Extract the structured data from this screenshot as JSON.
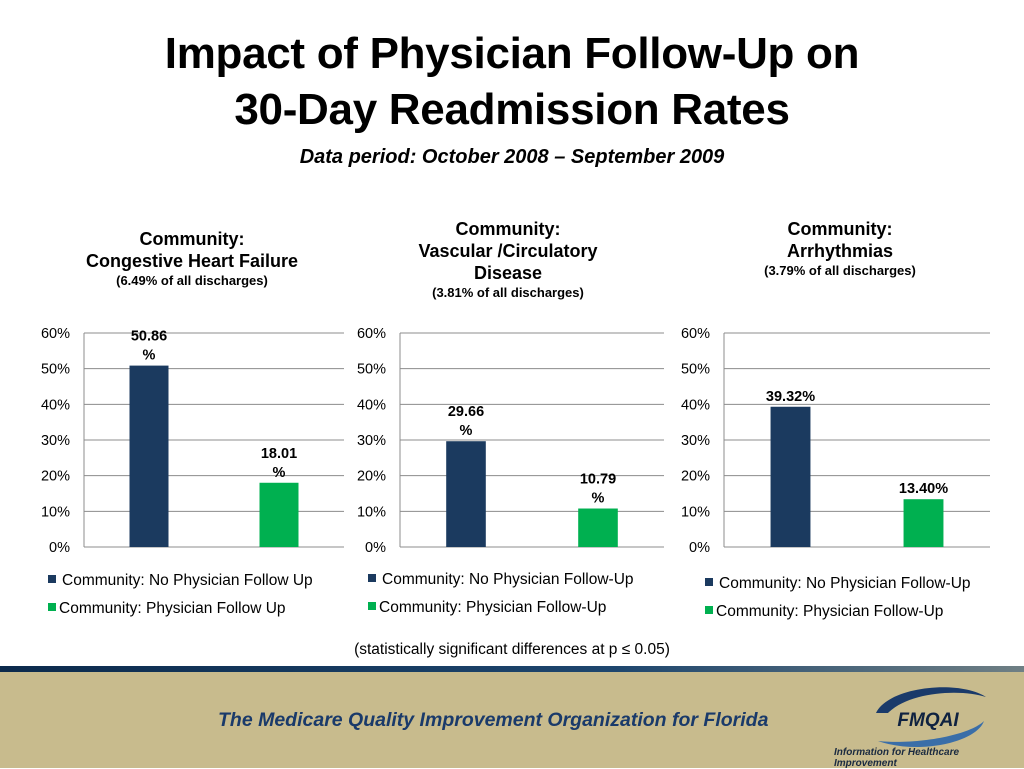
{
  "slide": {
    "title_line1": "Impact of Physician Follow-Up on",
    "title_line2": "30-Day Readmission Rates",
    "subtitle": "Data period: October 2008 – September 2009",
    "note": "(statistically significant differences at p ≤ 0.05)"
  },
  "footer": {
    "org_text": "The Medicare Quality Improvement Organization for Florida",
    "logo_text": "FMQAI",
    "tagline": "Information for Healthcare Improvement"
  },
  "colors": {
    "no_follow_up": "#1b3a5f",
    "follow_up": "#00b050",
    "footer_bg": "#c8bb8d"
  },
  "panels": [
    {
      "head1": "Community:",
      "head2": "Congestive Heart Failure",
      "head3": "",
      "share": "(6.49% of all discharges)",
      "legend_no": "Community: No Physician Follow Up",
      "legend_yes": "Community: Physician Follow Up"
    },
    {
      "head1": "Community:",
      "head2": "Vascular /Circulatory",
      "head3": "Disease",
      "share": "(3.81% of all discharges)",
      "legend_no": "Community: No Physician Follow-Up",
      "legend_yes": "Community: Physician Follow-Up"
    },
    {
      "head1": "Community:",
      "head2": "Arrhythmias",
      "head3": "",
      "share": "(3.79% of all discharges)",
      "legend_no": "Community: No Physician Follow-Up",
      "legend_yes": "Community: Physician Follow-Up"
    }
  ],
  "chart_data": [
    {
      "type": "bar",
      "title": "Community: Congestive Heart Failure",
      "categories": [
        "Community: No Physician Follow Up",
        "Community: Physician Follow Up"
      ],
      "values": [
        50.86,
        18.01
      ],
      "data_labels": [
        [
          "50.86",
          "%"
        ],
        [
          "18.01",
          "%"
        ]
      ],
      "yticks": [
        "0%",
        "10%",
        "20%",
        "30%",
        "40%",
        "50%",
        "60%"
      ],
      "ylim": [
        0,
        60
      ],
      "grid": true,
      "legend": "bottom"
    },
    {
      "type": "bar",
      "title": "Community: Vascular /Circulatory Disease",
      "categories": [
        "Community: No Physician Follow-Up",
        "Community: Physician Follow-Up"
      ],
      "values": [
        29.66,
        10.79
      ],
      "data_labels": [
        [
          "29.66",
          "%"
        ],
        [
          "10.79",
          "%"
        ]
      ],
      "yticks": [
        "0%",
        "10%",
        "20%",
        "30%",
        "40%",
        "50%",
        "60%"
      ],
      "ylim": [
        0,
        60
      ],
      "grid": true,
      "legend": "bottom"
    },
    {
      "type": "bar",
      "title": "Community: Arrhythmias",
      "categories": [
        "Community: No Physician Follow-Up",
        "Community: Physician Follow-Up"
      ],
      "values": [
        39.32,
        13.4
      ],
      "data_labels": [
        [
          "39.32%"
        ],
        [
          "13.40%"
        ]
      ],
      "yticks": [
        "0%",
        "10%",
        "20%",
        "30%",
        "40%",
        "50%",
        "60%"
      ],
      "ylim": [
        0,
        60
      ],
      "grid": true,
      "legend": "bottom"
    }
  ]
}
